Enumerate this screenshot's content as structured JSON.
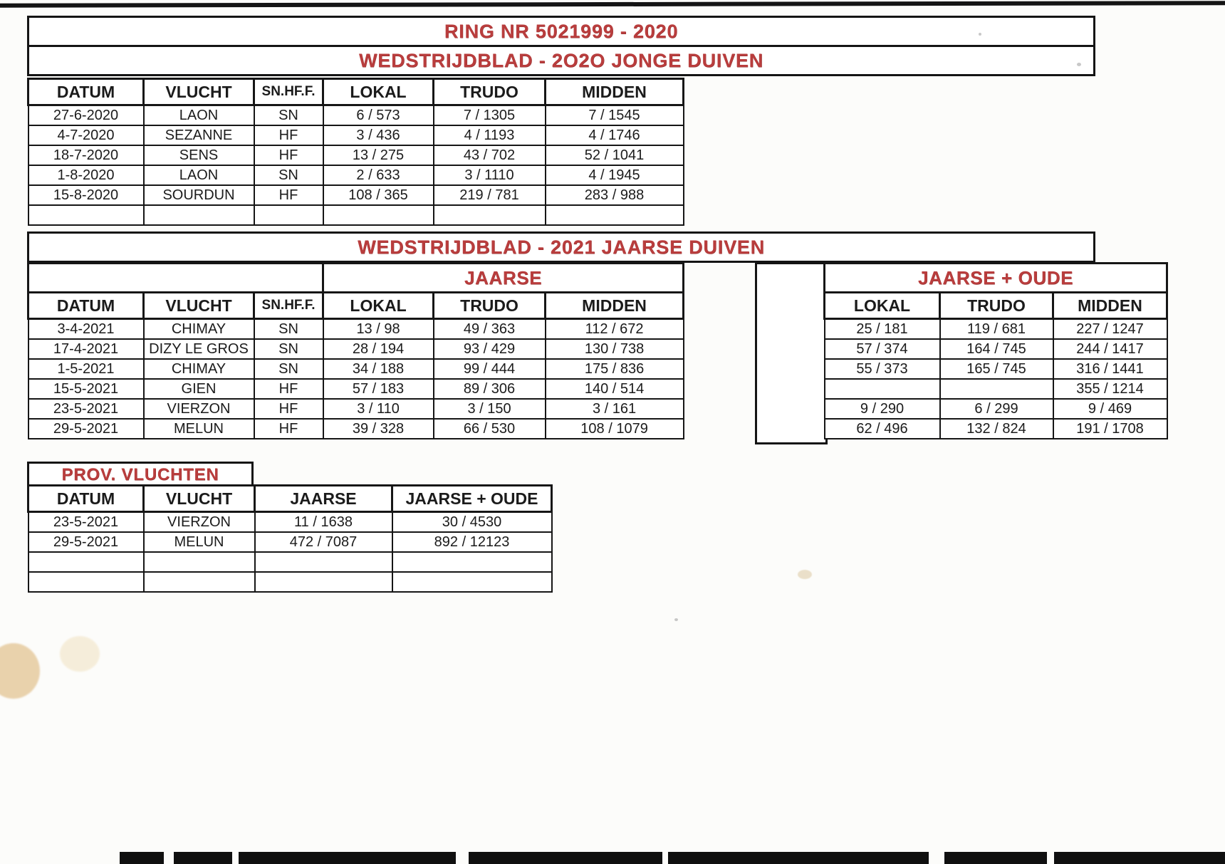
{
  "colors": {
    "accent_red": "#b93d3d",
    "ink": "#1b1b1b"
  },
  "banners": {
    "ring_title": "RING NR 5021999 - 2020",
    "title_2020": "WEDSTRIJDBLAD - 2O2O  JONGE DUIVEN",
    "title_2021": "WEDSTRIJDBLAD - 2021  JAARSE DUIVEN"
  },
  "table_2020": {
    "headers": [
      "DATUM",
      "VLUCHT",
      "SN.HF.F.",
      "LOKAL",
      "TRUDO",
      "MIDDEN"
    ],
    "rows": [
      [
        "27-6-2020",
        "LAON",
        "SN",
        "6 / 573",
        "7 / 1305",
        "7 / 1545"
      ],
      [
        "4-7-2020",
        "SEZANNE",
        "HF",
        "3 / 436",
        "4 / 1193",
        "4 / 1746"
      ],
      [
        "18-7-2020",
        "SENS",
        "HF",
        "13 / 275",
        "43 / 702",
        "52 / 1041"
      ],
      [
        "1-8-2020",
        "LAON",
        "SN",
        "2 / 633",
        "3 / 1110",
        "4 / 1945"
      ],
      [
        "15-8-2020",
        "SOURDUN",
        "HF",
        "108 / 365",
        "219 / 781",
        "283 / 988"
      ],
      [
        "",
        "",
        "",
        "",
        "",
        ""
      ]
    ]
  },
  "table_2021": {
    "group_left": "JAARSE",
    "group_right": "JAARSE + OUDE",
    "headers_left": [
      "DATUM",
      "VLUCHT",
      "SN.HF.F.",
      "LOKAL",
      "TRUDO",
      "MIDDEN"
    ],
    "headers_right": [
      "LOKAL",
      "TRUDO",
      "MIDDEN"
    ],
    "rows_left": [
      [
        "3-4-2021",
        "CHIMAY",
        "SN",
        "13 / 98",
        "49 / 363",
        "112 / 672"
      ],
      [
        "17-4-2021",
        "DIZY LE GROS",
        "SN",
        "28 / 194",
        "93 / 429",
        "130 / 738"
      ],
      [
        "1-5-2021",
        "CHIMAY",
        "SN",
        "34 / 188",
        "99 / 444",
        "175 / 836"
      ],
      [
        "15-5-2021",
        "GIEN",
        "HF",
        "57 / 183",
        "89 / 306",
        "140 / 514"
      ],
      [
        "23-5-2021",
        "VIERZON",
        "HF",
        "3 / 110",
        "3 / 150",
        "3 / 161"
      ],
      [
        "29-5-2021",
        "MELUN",
        "HF",
        "39 / 328",
        "66 / 530",
        "108 / 1079"
      ]
    ],
    "rows_right": [
      [
        "25 / 181",
        "119 / 681",
        "227 / 1247"
      ],
      [
        "57 / 374",
        "164 / 745",
        "244 / 1417"
      ],
      [
        "55 / 373",
        "165 / 745",
        "316 / 1441"
      ],
      [
        "",
        "",
        "355 / 1214"
      ],
      [
        "9 / 290",
        "6 / 299",
        "9 / 469"
      ],
      [
        "62 / 496",
        "132 / 824",
        "191 / 1708"
      ]
    ]
  },
  "table_prov": {
    "title": "PROV. VLUCHTEN",
    "headers": [
      "DATUM",
      "VLUCHT",
      "JAARSE",
      "JAARSE + OUDE"
    ],
    "rows": [
      [
        "23-5-2021",
        "VIERZON",
        "11 / 1638",
        "30 / 4530"
      ],
      [
        "29-5-2021",
        "MELUN",
        "472 / 7087",
        "892 / 12123"
      ],
      [
        "",
        "",
        "",
        ""
      ],
      [
        "",
        "",
        "",
        ""
      ]
    ]
  }
}
